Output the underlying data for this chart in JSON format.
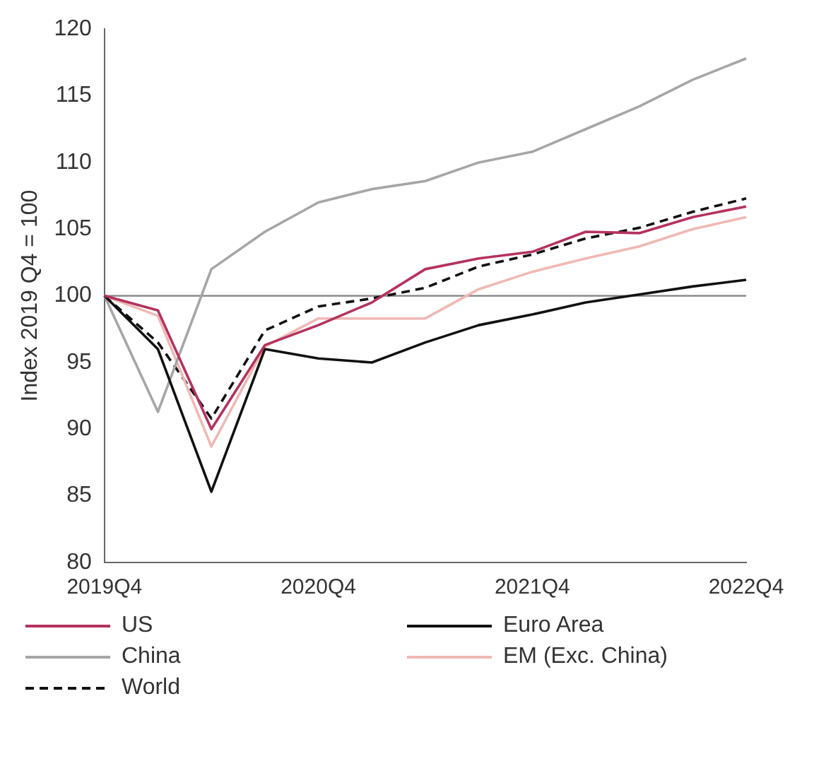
{
  "chart_data": {
    "type": "line",
    "ylabel": "Index 2019 Q4 = 100",
    "categories": [
      "2019Q4",
      null,
      null,
      null,
      "2020Q4",
      null,
      null,
      null,
      "2021Q4",
      null,
      null,
      null,
      "2022Q4"
    ],
    "series": [
      {
        "name": "US",
        "color": "#b5325e",
        "values": [
          100,
          98.9,
          90,
          96.3,
          97.8,
          99.5,
          102,
          102.8,
          103.3,
          104.8,
          104.7,
          105.9,
          106.7
        ]
      },
      {
        "name": "Euro Area",
        "color": "#111111",
        "values": [
          100,
          96,
          85.3,
          96,
          95.3,
          95,
          96.5,
          97.8,
          98.6,
          99.5,
          100.1,
          100.7,
          101.2
        ]
      },
      {
        "name": "China",
        "color": "#a6a6a6",
        "values": [
          100,
          91.3,
          102,
          104.8,
          107,
          108,
          108.6,
          110,
          110.8,
          112.5,
          114.2,
          116.2,
          117.8
        ]
      },
      {
        "name": "EM (Exc. China)",
        "color": "#f0b8b4",
        "values": [
          100,
          98.5,
          88.7,
          96.2,
          98.3,
          98.3,
          98.3,
          100.5,
          101.8,
          102.8,
          103.7,
          105,
          105.9
        ]
      },
      {
        "name": "World",
        "color": "#111111",
        "line_style": "dashed",
        "values": [
          100,
          96.5,
          90.8,
          97.4,
          99.2,
          99.8,
          100.6,
          102.2,
          103.1,
          104.3,
          105.1,
          106.3,
          107.3
        ]
      }
    ],
    "ylim": [
      80,
      120
    ],
    "yticks": [
      80,
      85,
      90,
      95,
      100,
      105,
      110,
      115,
      120
    ],
    "ref_lines": [
      {
        "axis": "y",
        "value": 100,
        "color": "#808080"
      }
    ],
    "grid": false,
    "legend": "bottom",
    "marker": "none",
    "line_style": "solid"
  }
}
